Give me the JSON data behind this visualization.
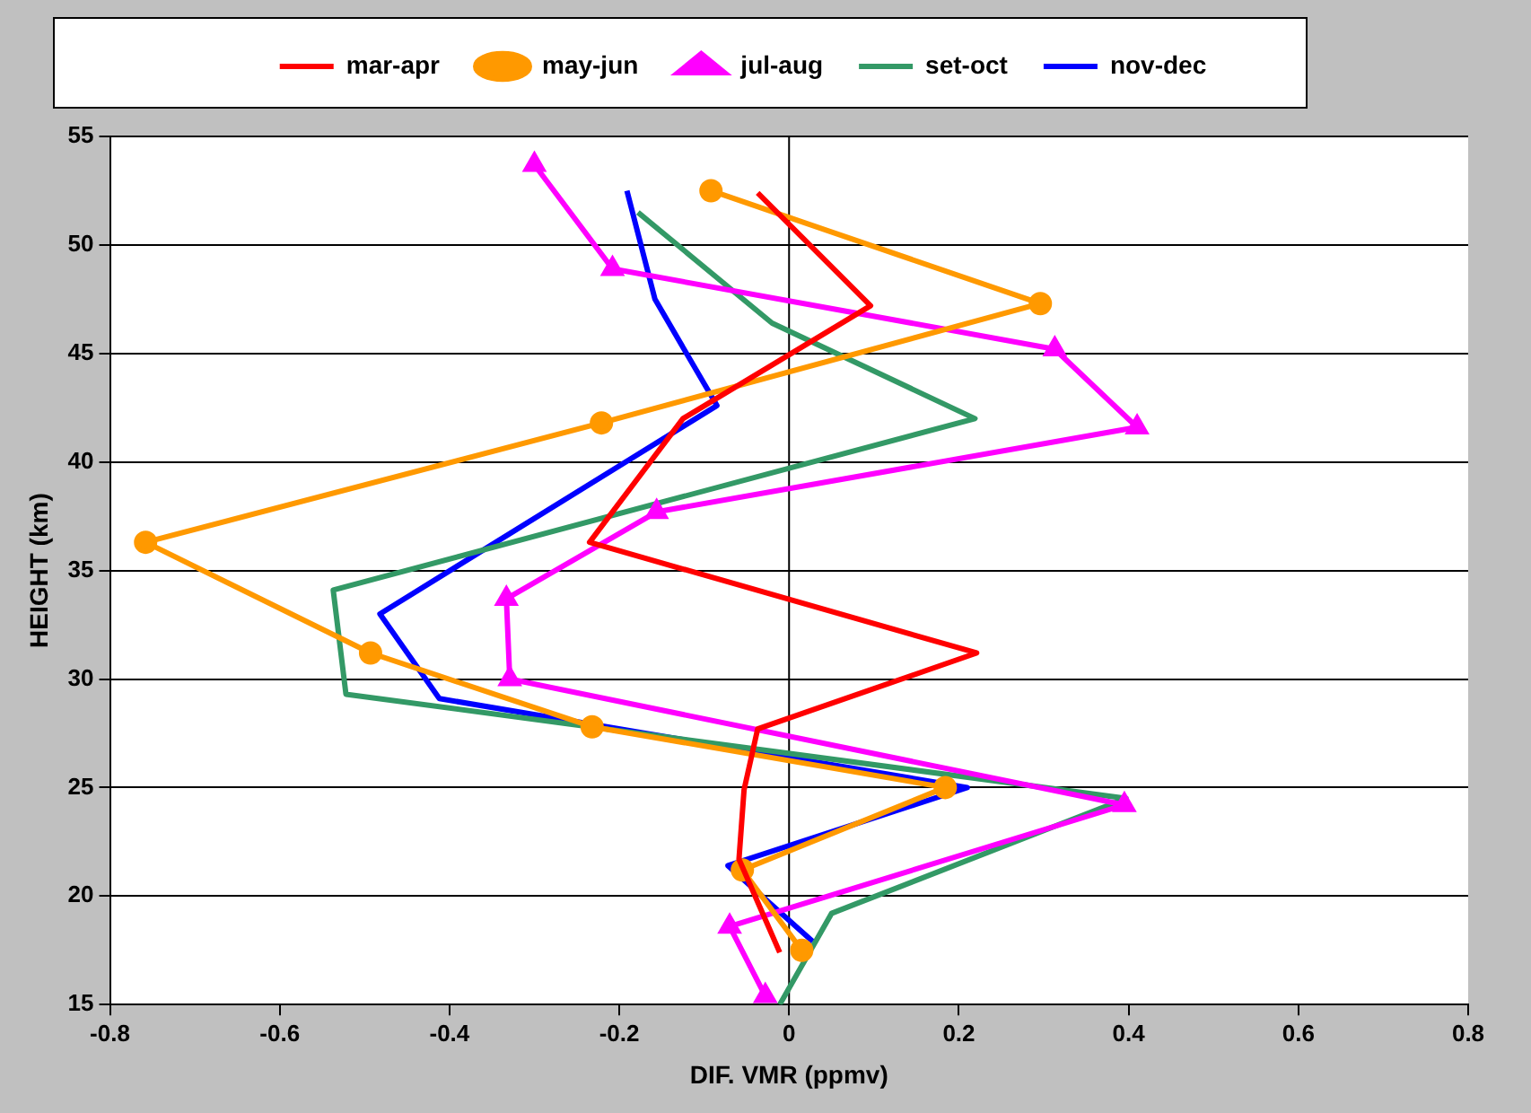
{
  "chart_data": {
    "type": "line",
    "xlabel": "DIF. VMR (ppmv)",
    "ylabel": "HEIGHT (km)",
    "xlim": [
      -0.8,
      0.8
    ],
    "xticks": [
      -0.8,
      -0.6,
      -0.4,
      -0.2,
      0,
      0.2,
      0.4,
      0.6,
      0.8
    ],
    "ylim": [
      15,
      55
    ],
    "yticks": [
      15,
      20,
      25,
      30,
      35,
      40,
      45,
      50,
      55
    ],
    "grid": "y",
    "legend": "top",
    "line_style": "solid",
    "ref_lines": [
      {
        "axis": "x",
        "value": 0,
        "color": "#000000"
      }
    ],
    "series": [
      {
        "name": "mar-apr",
        "color": "#ff0000",
        "marker": "none",
        "x": [
          -0.037,
          0.096,
          -0.125,
          -0.235,
          0.221,
          -0.037,
          -0.053,
          -0.059,
          -0.011
        ],
        "values": [
          52.4,
          47.2,
          42.0,
          36.3,
          31.2,
          27.7,
          24.9,
          21.7,
          17.4
        ]
      },
      {
        "name": "may-jun",
        "color": "#ff9900",
        "marker": "circle",
        "x": [
          -0.092,
          0.296,
          -0.221,
          -0.758,
          -0.493,
          -0.232,
          0.184,
          -0.055,
          0.015
        ],
        "values": [
          52.5,
          47.3,
          41.8,
          36.3,
          31.2,
          27.8,
          25.0,
          21.2,
          17.5
        ]
      },
      {
        "name": "jul-aug",
        "color": "#ff00ff",
        "marker": "triangle",
        "x": [
          -0.3,
          -0.208,
          0.313,
          0.41,
          -0.156,
          -0.333,
          -0.329,
          0.395,
          -0.07,
          -0.028
        ],
        "values": [
          53.7,
          48.9,
          45.2,
          41.6,
          37.7,
          33.7,
          30.0,
          24.2,
          18.6,
          15.4
        ]
      },
      {
        "name": "set-oct",
        "color": "#339966",
        "marker": "none",
        "x": [
          -0.178,
          -0.02,
          0.219,
          -0.537,
          -0.522,
          0.397,
          0.05,
          -0.011
        ],
        "values": [
          51.5,
          46.4,
          42.0,
          34.1,
          29.3,
          24.5,
          19.2,
          15.0
        ]
      },
      {
        "name": "nov-dec",
        "color": "#0000ff",
        "marker": "none",
        "x": [
          -0.191,
          -0.158,
          -0.085,
          -0.482,
          -0.412,
          0.21,
          -0.072,
          0.028
        ],
        "values": [
          52.5,
          47.5,
          42.6,
          33.0,
          29.1,
          25.0,
          21.4,
          17.9
        ]
      }
    ]
  }
}
